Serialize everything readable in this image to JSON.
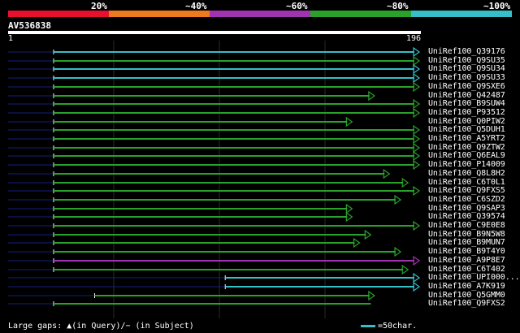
{
  "identity_legend": {
    "labels": [
      "20%",
      "~40%",
      "~60%",
      "~80%",
      "~100%"
    ],
    "colors": [
      "#e8112d",
      "#ee7a1e",
      "#a034b0",
      "#2aa12a",
      "#35bfc8"
    ]
  },
  "query": {
    "name": "AV536838",
    "start": "1",
    "end": "196"
  },
  "hits": [
    {
      "name": "UniRef100_Q39176",
      "color": "#35bfc8",
      "qstart": 0,
      "qend": 196,
      "arrow": true
    },
    {
      "name": "UniRef100_Q9SU35",
      "color": "#2aa12a",
      "qstart": 0,
      "qend": 196,
      "arrow": true
    },
    {
      "name": "UniRef100_Q9SU34",
      "color": "#35bfc8",
      "qstart": 0,
      "qend": 196,
      "arrow": true
    },
    {
      "name": "UniRef100_Q9SU33",
      "color": "#35bfc8",
      "qstart": 0,
      "qend": 196,
      "arrow": true
    },
    {
      "name": "UniRef100_Q9SXE6",
      "color": "#2aa12a",
      "qstart": 0,
      "qend": 196,
      "arrow": true
    },
    {
      "name": "UniRef100_Q42487",
      "color": "#2aa12a",
      "qstart": 0,
      "qend": 172,
      "arrow": true
    },
    {
      "name": "UniRef100_B9SUW4",
      "color": "#2aa12a",
      "qstart": 0,
      "qend": 196,
      "arrow": true
    },
    {
      "name": "UniRef100_P93512",
      "color": "#2aa12a",
      "qstart": 0,
      "qend": 196,
      "arrow": true
    },
    {
      "name": "UniRef100_Q0PIW2",
      "color": "#2aa12a",
      "qstart": 0,
      "qend": 160,
      "arrow": true
    },
    {
      "name": "UniRef100_Q5DUH1",
      "color": "#2aa12a",
      "qstart": 0,
      "qend": 196,
      "arrow": true
    },
    {
      "name": "UniRef100_A5YRT2",
      "color": "#2aa12a",
      "qstart": 0,
      "qend": 196,
      "arrow": true
    },
    {
      "name": "UniRef100_Q9ZTW2",
      "color": "#2aa12a",
      "qstart": 0,
      "qend": 196,
      "arrow": true
    },
    {
      "name": "UniRef100_Q6EAL9",
      "color": "#2aa12a",
      "qstart": 0,
      "qend": 196,
      "arrow": true
    },
    {
      "name": "UniRef100_P14009",
      "color": "#2aa12a",
      "qstart": 0,
      "qend": 196,
      "arrow": true
    },
    {
      "name": "UniRef100_Q8L8H2",
      "color": "#2aa12a",
      "qstart": 0,
      "qend": 180,
      "arrow": true
    },
    {
      "name": "UniRef100_C6T0L1",
      "color": "#2aa12a",
      "qstart": 0,
      "qend": 190,
      "arrow": true
    },
    {
      "name": "UniRef100_Q9FXS5",
      "color": "#2aa12a",
      "qstart": 0,
      "qend": 196,
      "arrow": true
    },
    {
      "name": "UniRef100_C6SZD2",
      "color": "#2aa12a",
      "qstart": 0,
      "qend": 186,
      "arrow": true
    },
    {
      "name": "UniRef100_Q9SAP3",
      "color": "#2aa12a",
      "qstart": 0,
      "qend": 160,
      "arrow": true
    },
    {
      "name": "UniRef100_Q39574",
      "color": "#2aa12a",
      "qstart": 0,
      "qend": 160,
      "arrow": true
    },
    {
      "name": "UniRef100_C9E0E8",
      "color": "#2aa12a",
      "qstart": 0,
      "qend": 196,
      "arrow": true
    },
    {
      "name": "UniRef100_B9N5W8",
      "color": "#2aa12a",
      "qstart": 0,
      "qend": 170,
      "arrow": true
    },
    {
      "name": "UniRef100_B9MUN7",
      "color": "#2aa12a",
      "qstart": 0,
      "qend": 164,
      "arrow": true
    },
    {
      "name": "UniRef100_B9T4Y0",
      "color": "#2aa12a",
      "qstart": 0,
      "qend": 186,
      "arrow": true
    },
    {
      "name": "UniRef100_A9P8E7",
      "color": "#a034b0",
      "qstart": 0,
      "qend": 196,
      "arrow": true
    },
    {
      "name": "UniRef100_C6T402",
      "color": "#2aa12a",
      "qstart": 0,
      "qend": 190,
      "arrow": true
    },
    {
      "name": "UniRef100_UPI000...",
      "color": "#35bfc8",
      "qstart": 92,
      "qend": 196,
      "arrow": true
    },
    {
      "name": "UniRef100_A7K919",
      "color": "#35bfc8",
      "qstart": 92,
      "qend": 196,
      "arrow": true
    },
    {
      "name": "UniRef100_Q5GMM0",
      "color": "#2aa12a",
      "qstart": 22,
      "qend": 172,
      "arrow": true
    },
    {
      "name": "UniRef100_Q9FXS2",
      "color": "#2aa12a",
      "qstart": 0,
      "qend": 170,
      "arrow": false
    }
  ],
  "footer": {
    "gaps_note": "Large gaps: ▲(in Query)/− (in Subject)",
    "scale_note": "=50char."
  }
}
